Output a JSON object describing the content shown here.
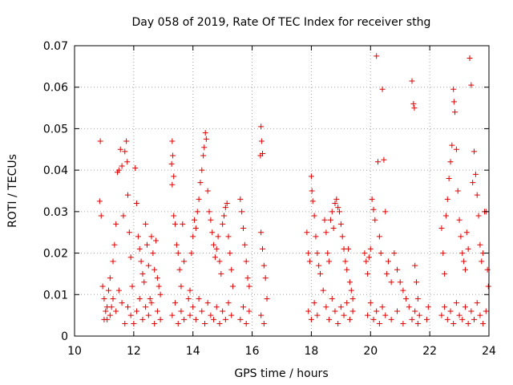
{
  "chart_data": {
    "type": "scatter",
    "title": "Day 058 of 2019, Rate Of TEC Index for receiver sthg",
    "xlabel": "GPS time / hours",
    "ylabel": "ROTI / TECUs",
    "xlim": [
      10,
      24
    ],
    "ylim": [
      0,
      0.07
    ],
    "x_ticks": [
      10,
      12,
      14,
      16,
      18,
      20,
      22,
      24
    ],
    "x_tick_labels": [
      "10",
      "12",
      "14",
      "16",
      "18",
      "20",
      "22",
      "24"
    ],
    "y_ticks": [
      0,
      0.01,
      0.02,
      0.03,
      0.04,
      0.05,
      0.06,
      0.07
    ],
    "y_tick_labels": [
      "0",
      "0.01",
      "0.02",
      "0.03",
      "0.04",
      "0.05",
      "0.06",
      "0.07"
    ],
    "grid": true,
    "marker": "+",
    "color": "#e00000",
    "series": [
      {
        "name": "ROTI",
        "points": [
          [
            10.87,
            0.047
          ],
          [
            10.85,
            0.0325
          ],
          [
            10.9,
            0.029
          ],
          [
            10.95,
            0.012
          ],
          [
            11.0,
            0.009
          ],
          [
            11.05,
            0.006
          ],
          [
            11.1,
            0.004
          ],
          [
            11.15,
            0.011
          ],
          [
            11.2,
            0.014
          ],
          [
            11.25,
            0.007
          ],
          [
            11.3,
            0.018
          ],
          [
            11.35,
            0.022
          ],
          [
            11.4,
            0.027
          ],
          [
            11.45,
            0.0395
          ],
          [
            11.5,
            0.04
          ],
          [
            11.55,
            0.045
          ],
          [
            11.6,
            0.041
          ],
          [
            11.65,
            0.029
          ],
          [
            11.7,
            0.0445
          ],
          [
            11.75,
            0.047
          ],
          [
            11.78,
            0.042
          ],
          [
            11.8,
            0.034
          ],
          [
            11.85,
            0.025
          ],
          [
            11.9,
            0.019
          ],
          [
            11.95,
            0.012
          ],
          [
            12.05,
            0.0405
          ],
          [
            12.1,
            0.032
          ],
          [
            12.15,
            0.024
          ],
          [
            12.2,
            0.021
          ],
          [
            12.25,
            0.018
          ],
          [
            12.3,
            0.015
          ],
          [
            12.35,
            0.013
          ],
          [
            12.4,
            0.027
          ],
          [
            12.45,
            0.022
          ],
          [
            12.5,
            0.017
          ],
          [
            12.55,
            0.009
          ],
          [
            12.6,
            0.024
          ],
          [
            12.65,
            0.02
          ],
          [
            12.7,
            0.016
          ],
          [
            12.75,
            0.023
          ],
          [
            12.8,
            0.014
          ],
          [
            12.85,
            0.012
          ],
          [
            12.9,
            0.01
          ],
          [
            13.3,
            0.047
          ],
          [
            13.32,
            0.0435
          ],
          [
            13.28,
            0.0415
          ],
          [
            13.35,
            0.0385
          ],
          [
            13.3,
            0.0365
          ],
          [
            13.35,
            0.029
          ],
          [
            13.4,
            0.027
          ],
          [
            13.45,
            0.022
          ],
          [
            13.5,
            0.02
          ],
          [
            13.55,
            0.016
          ],
          [
            13.6,
            0.012
          ],
          [
            13.65,
            0.027
          ],
          [
            13.7,
            0.018
          ],
          [
            13.85,
            0.009
          ],
          [
            13.9,
            0.011
          ],
          [
            13.95,
            0.02
          ],
          [
            14.0,
            0.024
          ],
          [
            14.05,
            0.028
          ],
          [
            14.1,
            0.026
          ],
          [
            14.15,
            0.03
          ],
          [
            14.2,
            0.033
          ],
          [
            14.25,
            0.037
          ],
          [
            14.3,
            0.04
          ],
          [
            14.35,
            0.0435
          ],
          [
            14.38,
            0.0455
          ],
          [
            14.42,
            0.049
          ],
          [
            14.45,
            0.0475
          ],
          [
            14.5,
            0.035
          ],
          [
            14.55,
            0.03
          ],
          [
            14.6,
            0.028
          ],
          [
            14.65,
            0.025
          ],
          [
            14.7,
            0.022
          ],
          [
            14.75,
            0.019
          ],
          [
            14.8,
            0.021
          ],
          [
            14.85,
            0.024
          ],
          [
            14.9,
            0.018
          ],
          [
            14.95,
            0.015
          ],
          [
            15.0,
            0.027
          ],
          [
            15.05,
            0.029
          ],
          [
            15.1,
            0.031
          ],
          [
            15.15,
            0.032
          ],
          [
            15.2,
            0.024
          ],
          [
            15.25,
            0.02
          ],
          [
            15.3,
            0.016
          ],
          [
            15.35,
            0.012
          ],
          [
            15.6,
            0.033
          ],
          [
            15.65,
            0.03
          ],
          [
            15.7,
            0.026
          ],
          [
            15.75,
            0.022
          ],
          [
            15.8,
            0.018
          ],
          [
            15.85,
            0.014
          ],
          [
            15.9,
            0.012
          ],
          [
            16.3,
            0.0505
          ],
          [
            16.32,
            0.047
          ],
          [
            16.28,
            0.0435
          ],
          [
            16.35,
            0.044
          ],
          [
            16.3,
            0.025
          ],
          [
            16.35,
            0.021
          ],
          [
            16.4,
            0.017
          ],
          [
            16.45,
            0.014
          ],
          [
            16.5,
            0.009
          ],
          [
            17.85,
            0.025
          ],
          [
            17.9,
            0.02
          ],
          [
            17.95,
            0.018
          ],
          [
            18.0,
            0.0385
          ],
          [
            18.02,
            0.035
          ],
          [
            18.05,
            0.0325
          ],
          [
            18.1,
            0.029
          ],
          [
            18.15,
            0.024
          ],
          [
            18.2,
            0.02
          ],
          [
            18.25,
            0.017
          ],
          [
            18.3,
            0.015
          ],
          [
            18.4,
            0.011
          ],
          [
            18.45,
            0.028
          ],
          [
            18.5,
            0.025
          ],
          [
            18.55,
            0.02
          ],
          [
            18.6,
            0.018
          ],
          [
            18.65,
            0.028
          ],
          [
            18.7,
            0.03
          ],
          [
            18.75,
            0.026
          ],
          [
            18.8,
            0.032
          ],
          [
            18.85,
            0.033
          ],
          [
            18.9,
            0.031
          ],
          [
            18.95,
            0.03
          ],
          [
            19.0,
            0.027
          ],
          [
            19.05,
            0.024
          ],
          [
            19.1,
            0.021
          ],
          [
            19.15,
            0.018
          ],
          [
            19.2,
            0.016
          ],
          [
            19.25,
            0.021
          ],
          [
            19.3,
            0.013
          ],
          [
            19.35,
            0.011
          ],
          [
            19.4,
            0.009
          ],
          [
            19.8,
            0.02
          ],
          [
            19.85,
            0.018
          ],
          [
            19.9,
            0.015
          ],
          [
            19.95,
            0.019
          ],
          [
            20.0,
            0.021
          ],
          [
            20.05,
            0.033
          ],
          [
            20.1,
            0.0305
          ],
          [
            20.15,
            0.028
          ],
          [
            20.2,
            0.0675
          ],
          [
            20.25,
            0.042
          ],
          [
            20.3,
            0.024
          ],
          [
            20.35,
            0.02
          ],
          [
            20.4,
            0.0595
          ],
          [
            20.45,
            0.0425
          ],
          [
            20.5,
            0.03
          ],
          [
            20.55,
            0.015
          ],
          [
            20.6,
            0.018
          ],
          [
            20.7,
            0.013
          ],
          [
            20.8,
            0.02
          ],
          [
            20.9,
            0.016
          ],
          [
            21.0,
            0.013
          ],
          [
            21.1,
            0.011
          ],
          [
            21.2,
            0.009
          ],
          [
            21.3,
            0.007
          ],
          [
            21.4,
            0.0615
          ],
          [
            21.45,
            0.056
          ],
          [
            21.48,
            0.055
          ],
          [
            21.5,
            0.017
          ],
          [
            21.55,
            0.013
          ],
          [
            21.6,
            0.009
          ],
          [
            21.65,
            0.005
          ],
          [
            21.95,
            0.007
          ],
          [
            22.4,
            0.026
          ],
          [
            22.45,
            0.02
          ],
          [
            22.5,
            0.015
          ],
          [
            22.55,
            0.029
          ],
          [
            22.6,
            0.033
          ],
          [
            22.65,
            0.038
          ],
          [
            22.7,
            0.042
          ],
          [
            22.75,
            0.046
          ],
          [
            22.8,
            0.0595
          ],
          [
            22.82,
            0.0565
          ],
          [
            22.85,
            0.054
          ],
          [
            22.9,
            0.045
          ],
          [
            22.95,
            0.035
          ],
          [
            23.0,
            0.028
          ],
          [
            23.05,
            0.024
          ],
          [
            23.1,
            0.02
          ],
          [
            23.15,
            0.018
          ],
          [
            23.2,
            0.016
          ],
          [
            23.25,
            0.025
          ],
          [
            23.3,
            0.021
          ],
          [
            23.35,
            0.067
          ],
          [
            23.4,
            0.0605
          ],
          [
            23.45,
            0.037
          ],
          [
            23.5,
            0.0445
          ],
          [
            23.55,
            0.039
          ],
          [
            23.6,
            0.034
          ],
          [
            23.65,
            0.029
          ],
          [
            23.7,
            0.022
          ],
          [
            23.75,
            0.018
          ],
          [
            23.8,
            0.02
          ],
          [
            23.85,
            0.03
          ],
          [
            23.9,
            0.03
          ],
          [
            23.95,
            0.016
          ],
          [
            23.98,
            0.012
          ],
          [
            11.0,
            0.004
          ],
          [
            11.1,
            0.007
          ],
          [
            11.2,
            0.005
          ],
          [
            11.3,
            0.009
          ],
          [
            11.4,
            0.006
          ],
          [
            11.5,
            0.011
          ],
          [
            11.6,
            0.008
          ],
          [
            11.7,
            0.003
          ],
          [
            11.8,
            0.007
          ],
          [
            11.9,
            0.005
          ],
          [
            12.0,
            0.003
          ],
          [
            12.1,
            0.006
          ],
          [
            12.2,
            0.009
          ],
          [
            12.3,
            0.004
          ],
          [
            12.4,
            0.007
          ],
          [
            12.5,
            0.005
          ],
          [
            12.6,
            0.008
          ],
          [
            12.7,
            0.003
          ],
          [
            12.8,
            0.006
          ],
          [
            12.9,
            0.004
          ],
          [
            13.3,
            0.005
          ],
          [
            13.4,
            0.008
          ],
          [
            13.5,
            0.003
          ],
          [
            13.6,
            0.006
          ],
          [
            13.7,
            0.004
          ],
          [
            13.9,
            0.005
          ],
          [
            14.0,
            0.007
          ],
          [
            14.1,
            0.004
          ],
          [
            14.2,
            0.009
          ],
          [
            14.3,
            0.006
          ],
          [
            14.4,
            0.003
          ],
          [
            14.5,
            0.008
          ],
          [
            14.6,
            0.005
          ],
          [
            14.7,
            0.004
          ],
          [
            14.8,
            0.007
          ],
          [
            14.9,
            0.003
          ],
          [
            15.0,
            0.006
          ],
          [
            15.1,
            0.004
          ],
          [
            15.2,
            0.008
          ],
          [
            15.3,
            0.005
          ],
          [
            15.6,
            0.004
          ],
          [
            15.7,
            0.007
          ],
          [
            15.8,
            0.003
          ],
          [
            15.9,
            0.006
          ],
          [
            16.3,
            0.005
          ],
          [
            16.4,
            0.003
          ],
          [
            17.9,
            0.006
          ],
          [
            18.0,
            0.004
          ],
          [
            18.1,
            0.008
          ],
          [
            18.2,
            0.005
          ],
          [
            18.5,
            0.007
          ],
          [
            18.6,
            0.004
          ],
          [
            18.7,
            0.009
          ],
          [
            18.8,
            0.006
          ],
          [
            18.9,
            0.003
          ],
          [
            19.0,
            0.007
          ],
          [
            19.1,
            0.005
          ],
          [
            19.2,
            0.008
          ],
          [
            19.3,
            0.004
          ],
          [
            19.4,
            0.006
          ],
          [
            19.9,
            0.005
          ],
          [
            20.0,
            0.008
          ],
          [
            20.1,
            0.004
          ],
          [
            20.2,
            0.006
          ],
          [
            20.3,
            0.003
          ],
          [
            20.4,
            0.007
          ],
          [
            20.5,
            0.005
          ],
          [
            20.7,
            0.004
          ],
          [
            20.9,
            0.006
          ],
          [
            21.1,
            0.003
          ],
          [
            21.4,
            0.004
          ],
          [
            21.5,
            0.006
          ],
          [
            21.6,
            0.003
          ],
          [
            21.9,
            0.004
          ],
          [
            22.4,
            0.005
          ],
          [
            22.5,
            0.007
          ],
          [
            22.6,
            0.004
          ],
          [
            22.7,
            0.006
          ],
          [
            22.8,
            0.003
          ],
          [
            22.9,
            0.008
          ],
          [
            23.0,
            0.005
          ],
          [
            23.1,
            0.004
          ],
          [
            23.2,
            0.007
          ],
          [
            23.3,
            0.003
          ],
          [
            23.4,
            0.006
          ],
          [
            23.5,
            0.004
          ],
          [
            23.6,
            0.008
          ],
          [
            23.7,
            0.005
          ],
          [
            23.8,
            0.003
          ],
          [
            23.9,
            0.006
          ]
        ]
      }
    ]
  }
}
